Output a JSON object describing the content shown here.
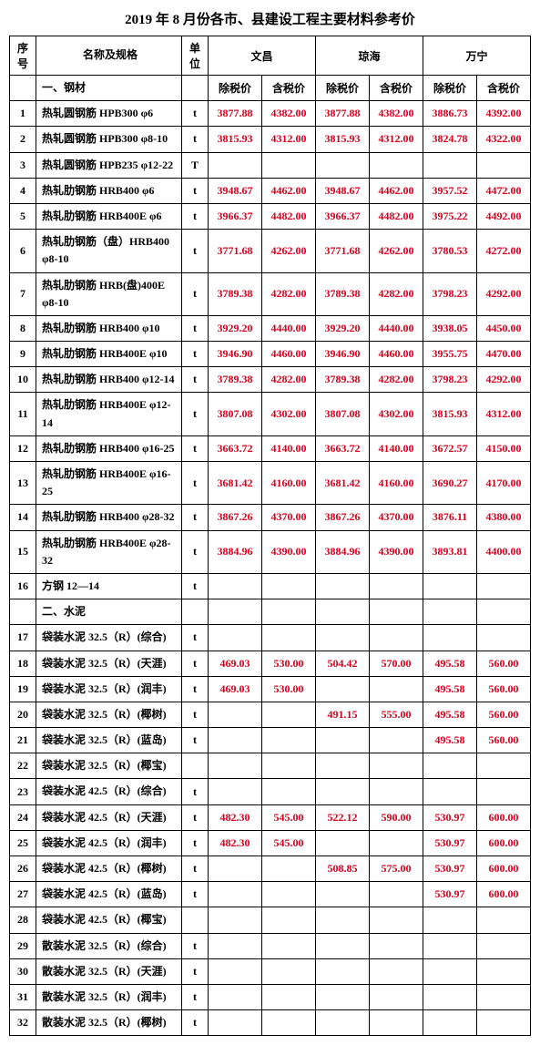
{
  "title": "2019 年 8 月份各市、县建设工程主要材料参考价",
  "headers": {
    "no": "序号",
    "name": "名称及规格",
    "unit": "单位",
    "city1": "文昌",
    "city2": "琼海",
    "city3": "万宁",
    "extax": "除税价",
    "intax": "含税价"
  },
  "section1": "一、钢材",
  "section2": "二、水泥",
  "rows": [
    {
      "no": "1",
      "name": "热轧圆钢筋 HPB300 φ6",
      "unit": "t",
      "v": [
        "3877.88",
        "4382.00",
        "3877.88",
        "4382.00",
        "3886.73",
        "4392.00"
      ]
    },
    {
      "no": "2",
      "name": "热轧圆钢筋 HPB300 φ8-10",
      "unit": "t",
      "v": [
        "3815.93",
        "4312.00",
        "3815.93",
        "4312.00",
        "3824.78",
        "4322.00"
      ]
    },
    {
      "no": "3",
      "name": "热轧圆钢筋 HPB235 φ12-22",
      "unit": "T",
      "v": [
        "",
        "",
        "",
        "",
        "",
        ""
      ]
    },
    {
      "no": "4",
      "name": "热轧肋钢筋 HRB400 φ6",
      "unit": "t",
      "v": [
        "3948.67",
        "4462.00",
        "3948.67",
        "4462.00",
        "3957.52",
        "4472.00"
      ]
    },
    {
      "no": "5",
      "name": "热轧肋钢筋 HRB400E φ6",
      "unit": "t",
      "v": [
        "3966.37",
        "4482.00",
        "3966.37",
        "4482.00",
        "3975.22",
        "4492.00"
      ]
    },
    {
      "no": "6",
      "name": "热轧肋钢筋（盘）HRB400 φ8-10",
      "unit": "t",
      "v": [
        "3771.68",
        "4262.00",
        "3771.68",
        "4262.00",
        "3780.53",
        "4272.00"
      ],
      "tall": true
    },
    {
      "no": "7",
      "name": "热轧肋钢筋 HRB(盘)400E φ8-10",
      "unit": "t",
      "v": [
        "3789.38",
        "4282.00",
        "3789.38",
        "4282.00",
        "3798.23",
        "4292.00"
      ],
      "tall": true
    },
    {
      "no": "8",
      "name": "热轧肋钢筋 HRB400 φ10",
      "unit": "t",
      "v": [
        "3929.20",
        "4440.00",
        "3929.20",
        "4440.00",
        "3938.05",
        "4450.00"
      ]
    },
    {
      "no": "9",
      "name": "热轧肋钢筋 HRB400E φ10",
      "unit": "t",
      "v": [
        "3946.90",
        "4460.00",
        "3946.90",
        "4460.00",
        "3955.75",
        "4470.00"
      ]
    },
    {
      "no": "10",
      "name": "热轧肋钢筋 HRB400 φ12-14",
      "unit": "t",
      "v": [
        "3789.38",
        "4282.00",
        "3789.38",
        "4282.00",
        "3798.23",
        "4292.00"
      ]
    },
    {
      "no": "11",
      "name": "热轧肋钢筋 HRB400E φ12-14",
      "unit": "t",
      "v": [
        "3807.08",
        "4302.00",
        "3807.08",
        "4302.00",
        "3815.93",
        "4312.00"
      ],
      "tall": true
    },
    {
      "no": "12",
      "name": "热轧肋钢筋 HRB400 φ16-25",
      "unit": "t",
      "v": [
        "3663.72",
        "4140.00",
        "3663.72",
        "4140.00",
        "3672.57",
        "4150.00"
      ]
    },
    {
      "no": "13",
      "name": "热轧肋钢筋 HRB400E φ16-25",
      "unit": "t",
      "v": [
        "3681.42",
        "4160.00",
        "3681.42",
        "4160.00",
        "3690.27",
        "4170.00"
      ],
      "tall": true
    },
    {
      "no": "14",
      "name": "热轧肋钢筋 HRB400 φ28-32",
      "unit": "t",
      "v": [
        "3867.26",
        "4370.00",
        "3867.26",
        "4370.00",
        "3876.11",
        "4380.00"
      ]
    },
    {
      "no": "15",
      "name": "热轧肋钢筋 HRB400E φ28-32",
      "unit": "t",
      "v": [
        "3884.96",
        "4390.00",
        "3884.96",
        "4390.00",
        "3893.81",
        "4400.00"
      ],
      "tall": true
    },
    {
      "no": "16",
      "name": "方钢 12—14",
      "unit": "t",
      "v": [
        "",
        "",
        "",
        "",
        "",
        ""
      ]
    },
    {
      "no": "17",
      "name": "袋装水泥 32.5（R）(综合)",
      "unit": "t",
      "v": [
        "",
        "",
        "",
        "",
        "",
        ""
      ]
    },
    {
      "no": "18",
      "name": "袋装水泥 32.5（R）(天涯)",
      "unit": "t",
      "v": [
        "469.03",
        "530.00",
        "504.42",
        "570.00",
        "495.58",
        "560.00"
      ]
    },
    {
      "no": "19",
      "name": "袋装水泥 32.5（R）(润丰)",
      "unit": "t",
      "v": [
        "469.03",
        "530.00",
        "",
        "",
        "495.58",
        "560.00"
      ]
    },
    {
      "no": "20",
      "name": "袋装水泥 32.5（R）(椰树)",
      "unit": "t",
      "v": [
        "",
        "",
        "491.15",
        "555.00",
        "495.58",
        "560.00"
      ]
    },
    {
      "no": "21",
      "name": "袋装水泥 32.5（R）(蓝岛)",
      "unit": "t",
      "v": [
        "",
        "",
        "",
        "",
        "495.58",
        "560.00"
      ]
    },
    {
      "no": "22",
      "name": "袋装水泥 32.5（R）(椰宝)",
      "unit": "",
      "v": [
        "",
        "",
        "",
        "",
        "",
        ""
      ]
    },
    {
      "no": "23",
      "name": "袋装水泥 42.5（R）(综合)",
      "unit": "t",
      "v": [
        "",
        "",
        "",
        "",
        "",
        ""
      ]
    },
    {
      "no": "24",
      "name": "袋装水泥 42.5（R）(天涯)",
      "unit": "t",
      "v": [
        "482.30",
        "545.00",
        "522.12",
        "590.00",
        "530.97",
        "600.00"
      ]
    },
    {
      "no": "25",
      "name": "袋装水泥 42.5（R）(润丰)",
      "unit": "t",
      "v": [
        "482.30",
        "545.00",
        "",
        "",
        "530.97",
        "600.00"
      ]
    },
    {
      "no": "26",
      "name": "袋装水泥 42.5（R）(椰树)",
      "unit": "t",
      "v": [
        "",
        "",
        "508.85",
        "575.00",
        "530.97",
        "600.00"
      ]
    },
    {
      "no": "27",
      "name": "袋装水泥 42.5（R）(蓝岛)",
      "unit": "t",
      "v": [
        "",
        "",
        "",
        "",
        "530.97",
        "600.00"
      ]
    },
    {
      "no": "28",
      "name": "袋装水泥 42.5（R）(椰宝)",
      "unit": "",
      "v": [
        "",
        "",
        "",
        "",
        "",
        ""
      ]
    },
    {
      "no": "29",
      "name": "散装水泥 32.5（R）(综合)",
      "unit": "t",
      "v": [
        "",
        "",
        "",
        "",
        "",
        ""
      ]
    },
    {
      "no": "30",
      "name": "散装水泥 32.5（R）(天涯)",
      "unit": "t",
      "v": [
        "",
        "",
        "",
        "",
        "",
        ""
      ]
    },
    {
      "no": "31",
      "name": "散装水泥 32.5（R）(润丰)",
      "unit": "t",
      "v": [
        "",
        "",
        "",
        "",
        "",
        ""
      ]
    },
    {
      "no": "32",
      "name": "散装水泥 32.5（R）(椰树)",
      "unit": "t",
      "v": [
        "",
        "",
        "",
        "",
        "",
        ""
      ]
    }
  ]
}
